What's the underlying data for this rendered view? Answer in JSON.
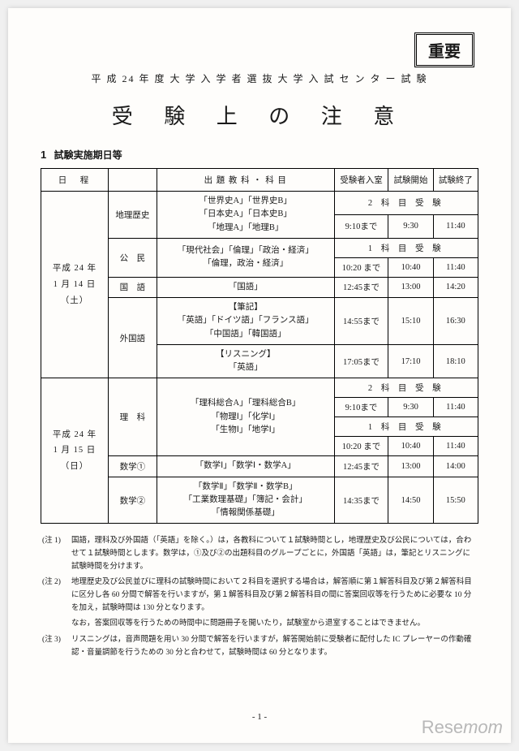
{
  "stamp": "重要",
  "header": "平 成 24 年 度 大 学 入 学 者 選 抜 大 学 入 試 セ ン タ ー 試 験",
  "title": "受 験 上 の 注 意",
  "section": {
    "num": "1",
    "label": "試験実施期日等"
  },
  "thead": {
    "date": "日　程",
    "subject": "出 題 教 科 ・ 科 目",
    "enter": "受験者入室",
    "start": "試験開始",
    "end": "試験終了"
  },
  "day1": {
    "date": "平成 24 年\n1 月 14 日（土）",
    "rows": [
      {
        "cat": "地理歴史",
        "subj": "「世界史A」「世界史B」\n「日本史A」「日本史B」\n「地理A」「地理B」",
        "span": "2 科 目 受 験",
        "enter": "9:10まで",
        "start": "9:30",
        "end": "11:40"
      },
      {
        "cat": "公　民",
        "subj": "「現代社会」「倫理」「政治・経済」\n「倫理，政治・経済」",
        "span": "1 科 目 受 験",
        "enter": "10:20 まで",
        "start": "10:40",
        "end": "11:40"
      },
      {
        "cat": "国　語",
        "subj": "「国語」",
        "enter": "12:45まで",
        "start": "13:00",
        "end": "14:20"
      },
      {
        "cat": "外国語",
        "sub1": "【筆記】\n「英語」「ドイツ語」「フランス語」\n「中国語」「韓国語」",
        "enter1": "14:55まで",
        "start1": "15:10",
        "end1": "16:30",
        "sub2": "【リスニング】\n「英語」",
        "enter2": "17:05まで",
        "start2": "17:10",
        "end2": "18:10"
      }
    ]
  },
  "day2": {
    "date": "平成 24 年\n1 月 15 日（日）",
    "rows": [
      {
        "cat": "理　科",
        "subj": "「理科総合A」「理科総合B」\n「物理Ⅰ」「化学Ⅰ」\n「生物Ⅰ」「地学Ⅰ」",
        "span2a": "2 科 目 受 験",
        "enter_a": "9:10まで",
        "start_a": "9:30",
        "end_a": "11:40",
        "span2b": "1 科 目 受 験",
        "enter_b": "10:20 まで",
        "start_b": "10:40",
        "end_b": "11:40"
      },
      {
        "cat": "数学①",
        "subj": "「数学Ⅰ」「数学Ⅰ・数学A」",
        "enter": "12:45まで",
        "start": "13:00",
        "end": "14:00"
      },
      {
        "cat": "数学②",
        "subj": "「数学Ⅱ」「数学Ⅱ・数学B」\n「工業数理基礎」「簿記・会計」\n「情報関係基礎」",
        "enter": "14:35まで",
        "start": "14:50",
        "end": "15:50"
      }
    ]
  },
  "notes": [
    {
      "label": "(注 1)",
      "text": "国語，理科及び外国語（「英語」を除く。）は，各教科について１試験時間とし，地理歴史及び公民については，合わせて１試験時間とします。数学は，①及び②の出題科目のグループごとに，外国語「英語」は，筆記とリスニングに試験時間を分けます。"
    },
    {
      "label": "(注 2)",
      "text": "地理歴史及び公民並びに理科の試験時間において２科目を選択する場合は，解答順に第１解答科目及び第２解答科目に区分し各 60 分間で解答を行いますが，第１解答科目及び第２解答科目の間に答案回収等を行うために必要な 10 分を加え，試験時間は 130 分となります。"
    },
    {
      "label": "",
      "text": "なお，答案回収等を行うための時間中に問題冊子を開いたり，試験室から退室することはできません。"
    },
    {
      "label": "(注 3)",
      "text": "リスニングは，音声問題を用い 30 分間で解答を行いますが，解答開始前に受験者に配付した IC プレーヤーの作動確認・音量調節を行うための 30 分と合わせて，試験時間は 60 分となります。"
    }
  ],
  "pagenum": "- 1 -",
  "watermark": {
    "a": "Rese",
    "b": "mom"
  }
}
